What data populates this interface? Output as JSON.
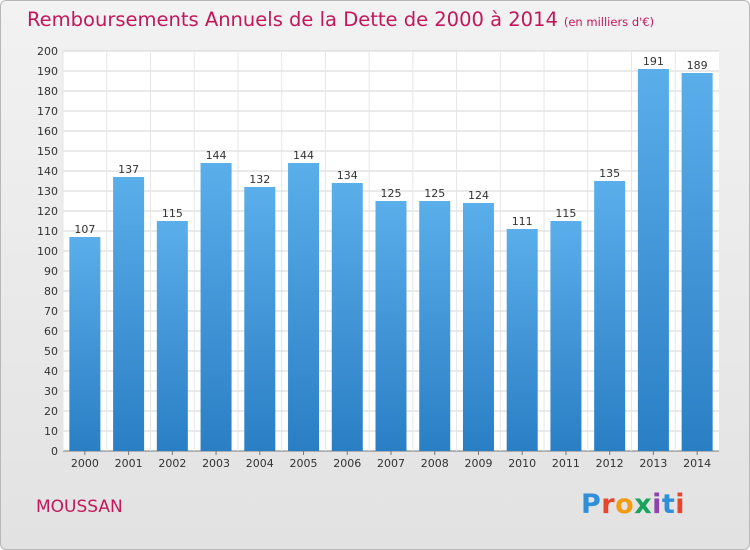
{
  "header": {
    "title": "Remboursements Annuels de la Dette de 2000 à 2014",
    "unit": "(en milliers d'€)"
  },
  "footer": {
    "city": "MOUSSAN",
    "logo_letters": [
      "P",
      "r",
      "o",
      "x",
      "i",
      "t",
      "i"
    ]
  },
  "colors": {
    "bar_top": "#5aaeea",
    "bar_bottom": "#2a7ec4",
    "accent": "#c2185b"
  },
  "chart_data": {
    "type": "bar",
    "title": "Remboursements Annuels de la Dette de 2000 à 2014",
    "subtitle": "(en milliers d'€)",
    "xlabel": "",
    "ylabel": "",
    "categories": [
      "2000",
      "2001",
      "2002",
      "2003",
      "2004",
      "2005",
      "2006",
      "2007",
      "2008",
      "2009",
      "2010",
      "2011",
      "2012",
      "2013",
      "2014"
    ],
    "values": [
      107,
      137,
      115,
      144,
      132,
      144,
      134,
      125,
      125,
      124,
      111,
      115,
      135,
      191,
      189
    ],
    "ylim": [
      0,
      200
    ],
    "ytick_step": 10,
    "grid": true
  }
}
